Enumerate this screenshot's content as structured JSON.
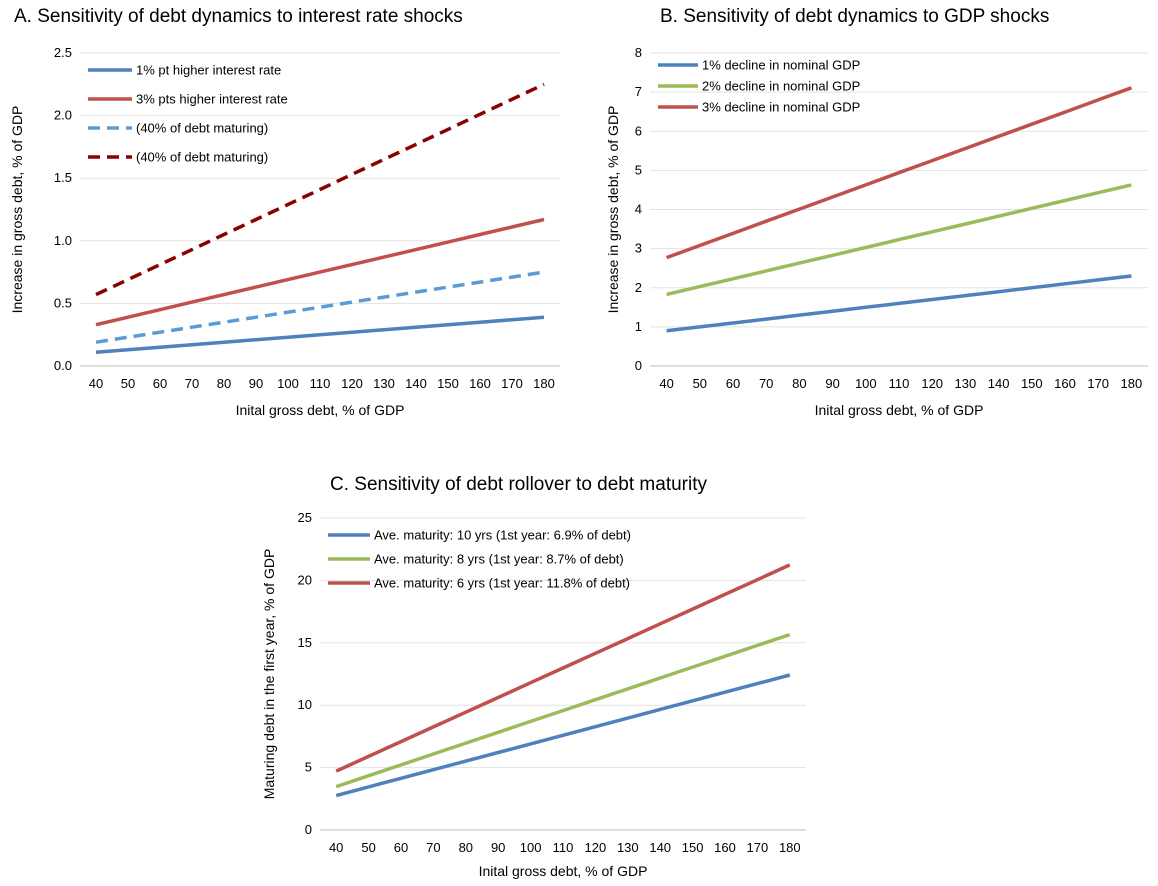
{
  "chart_data": [
    {
      "type": "line",
      "title": "A. Sensitivity of debt dynamics to interest rate shocks",
      "xlabel": "Inital gross debt, % of GDP",
      "ylabel": "Increase in gross debt, % of GDP",
      "ylim": [
        0,
        2.5
      ],
      "yticks": [
        "0.0",
        "0.5",
        "1.0",
        "1.5",
        "2.0",
        "2.5"
      ],
      "ytick_values": [
        0,
        0.5,
        1.0,
        1.5,
        2.0,
        2.5
      ],
      "categories": [
        "40",
        "50",
        "60",
        "70",
        "80",
        "90",
        "100",
        "110",
        "120",
        "130",
        "140",
        "150",
        "160",
        "170",
        "180"
      ],
      "grid": true,
      "legend_position": "top-left",
      "series": [
        {
          "name": "1% pt higher interest rate",
          "color": "#4f81bd",
          "dash": false,
          "values": [
            0.11,
            0.13,
            0.15,
            0.17,
            0.19,
            0.21,
            0.23,
            0.25,
            0.27,
            0.29,
            0.31,
            0.33,
            0.35,
            0.37,
            0.39
          ]
        },
        {
          "name": "3% pts higher interest rate",
          "color": "#c0504d",
          "dash": false,
          "values": [
            0.33,
            0.39,
            0.45,
            0.51,
            0.57,
            0.63,
            0.69,
            0.75,
            0.81,
            0.87,
            0.93,
            0.99,
            1.05,
            1.11,
            1.17
          ]
        },
        {
          "name": "(40% of debt maturing)",
          "color": "#5b9bd5",
          "dash": true,
          "values": [
            0.19,
            0.23,
            0.27,
            0.31,
            0.35,
            0.39,
            0.43,
            0.47,
            0.51,
            0.55,
            0.59,
            0.63,
            0.67,
            0.71,
            0.75
          ]
        },
        {
          "name": "(40% of debt maturing)",
          "color": "#8b0000",
          "dash": true,
          "values": [
            0.57,
            0.69,
            0.81,
            0.93,
            1.05,
            1.17,
            1.29,
            1.41,
            1.53,
            1.65,
            1.77,
            1.89,
            2.01,
            2.13,
            2.25
          ]
        }
      ]
    },
    {
      "type": "line",
      "title": "B. Sensitivity of debt dynamics to GDP shocks",
      "xlabel": "Inital gross debt, % of GDP",
      "ylabel": "Increase in gross debt, % of GDP",
      "ylim": [
        0,
        8
      ],
      "yticks": [
        "0",
        "1",
        "2",
        "3",
        "4",
        "5",
        "6",
        "7",
        "8"
      ],
      "ytick_values": [
        0,
        1,
        2,
        3,
        4,
        5,
        6,
        7,
        8
      ],
      "categories": [
        "40",
        "50",
        "60",
        "70",
        "80",
        "90",
        "100",
        "110",
        "120",
        "130",
        "140",
        "150",
        "160",
        "170",
        "180"
      ],
      "grid": true,
      "legend_position": "top-left",
      "series": [
        {
          "name": "1% decline in nominal GDP",
          "color": "#4f81bd",
          "dash": false,
          "values": [
            0.9,
            1.0,
            1.1,
            1.2,
            1.3,
            1.4,
            1.5,
            1.6,
            1.7,
            1.8,
            1.9,
            2.0,
            2.1,
            2.2,
            2.3
          ]
        },
        {
          "name": "2% decline in nominal GDP",
          "color": "#9bbb59",
          "dash": false,
          "values": [
            1.83,
            2.03,
            2.23,
            2.43,
            2.63,
            2.83,
            3.03,
            3.23,
            3.43,
            3.63,
            3.83,
            4.03,
            4.23,
            4.43,
            4.63
          ]
        },
        {
          "name": "3% decline in nominal GDP",
          "color": "#c0504d",
          "dash": false,
          "values": [
            2.77,
            3.08,
            3.39,
            3.7,
            4.01,
            4.32,
            4.63,
            4.94,
            5.25,
            5.56,
            5.87,
            6.18,
            6.49,
            6.8,
            7.11
          ]
        }
      ]
    },
    {
      "type": "line",
      "title": "C. Sensitivity of debt rollover to debt maturity",
      "xlabel": "Inital gross debt, % of GDP",
      "ylabel": "Maturing debt  in the first year,  % of GDP",
      "ylim": [
        0,
        25
      ],
      "yticks": [
        "0",
        "5",
        "10",
        "15",
        "20",
        "25"
      ],
      "ytick_values": [
        0,
        5,
        10,
        15,
        20,
        25
      ],
      "categories": [
        "40",
        "50",
        "60",
        "70",
        "80",
        "90",
        "100",
        "110",
        "120",
        "130",
        "140",
        "150",
        "160",
        "170",
        "180"
      ],
      "grid": true,
      "legend_position": "top-left",
      "series": [
        {
          "name": "Ave. maturity: 10 yrs (1st year: 6.9% of debt)",
          "color": "#4f81bd",
          "dash": false,
          "values": [
            2.76,
            3.45,
            4.14,
            4.83,
            5.52,
            6.21,
            6.9,
            7.59,
            8.28,
            8.97,
            9.66,
            10.35,
            11.04,
            11.73,
            12.42
          ]
        },
        {
          "name": "Ave. maturity: 8 yrs (1st year: 8.7% of debt)",
          "color": "#9bbb59",
          "dash": false,
          "values": [
            3.48,
            4.35,
            5.22,
            6.09,
            6.96,
            7.83,
            8.7,
            9.57,
            10.44,
            11.31,
            12.18,
            13.05,
            13.92,
            14.79,
            15.66
          ]
        },
        {
          "name": "Ave. maturity: 6 yrs (1st year: 11.8% of debt)",
          "color": "#c0504d",
          "dash": false,
          "values": [
            4.72,
            5.9,
            7.08,
            8.26,
            9.44,
            10.62,
            11.8,
            12.98,
            14.16,
            15.34,
            16.52,
            17.7,
            18.88,
            20.06,
            21.24
          ]
        }
      ]
    }
  ]
}
